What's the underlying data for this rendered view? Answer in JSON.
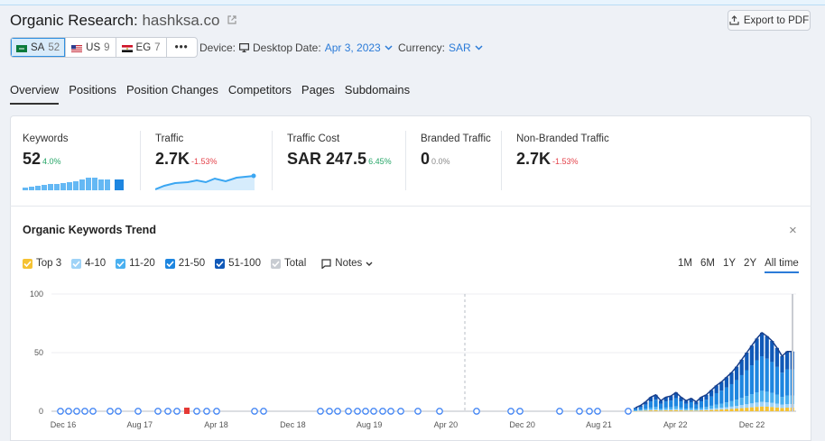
{
  "header": {
    "title_prefix": "Organic Research:",
    "domain": "hashksa.co",
    "export_label": "Export to PDF"
  },
  "databases": [
    {
      "code": "SA",
      "count": "52",
      "flag": "sa",
      "active": true
    },
    {
      "code": "US",
      "count": "9",
      "flag": "us",
      "active": false
    },
    {
      "code": "EG",
      "count": "7",
      "flag": "eg",
      "active": false
    }
  ],
  "more_label": "•••",
  "device": {
    "label": "Device:",
    "value": "Desktop"
  },
  "date": {
    "label": "Date:",
    "value": "Apr 3, 2023"
  },
  "currency": {
    "label": "Currency:",
    "value": "SAR"
  },
  "tabs": [
    "Overview",
    "Positions",
    "Position Changes",
    "Competitors",
    "Pages",
    "Subdomains"
  ],
  "active_tab": "Overview",
  "kpis": [
    {
      "label": "Keywords",
      "value": "52",
      "change": "4.0%",
      "trend": "up"
    },
    {
      "label": "Traffic",
      "value": "2.7K",
      "change": "-1.53%",
      "trend": "down"
    },
    {
      "label": "Traffic Cost",
      "value": "SAR 247.5",
      "change": "6.45%",
      "trend": "up"
    },
    {
      "label": "Branded Traffic",
      "value": "0",
      "change": "0.0%",
      "trend": "neutral"
    },
    {
      "label": "Non-Branded Traffic",
      "value": "2.7K",
      "change": "-1.53%",
      "trend": "down"
    }
  ],
  "trend": {
    "title": "Organic Keywords Trend",
    "close_label": "×",
    "filters": [
      {
        "label": "Top 3",
        "color": "#f5c232"
      },
      {
        "label": "4-10",
        "color": "#9fd3f7"
      },
      {
        "label": "11-20",
        "color": "#4ab0f0"
      },
      {
        "label": "21-50",
        "color": "#1e86e0"
      },
      {
        "label": "51-100",
        "color": "#1059b8"
      },
      {
        "label": "Total",
        "color": "#c8ccd2"
      }
    ],
    "notes_label": "Notes",
    "ranges": [
      "1M",
      "6M",
      "1Y",
      "2Y",
      "All time"
    ],
    "active_range": "All time"
  },
  "chart_data": {
    "type": "bar",
    "yticks": [
      0,
      50,
      100
    ],
    "ylim": [
      0,
      100
    ],
    "x_tick_labels": [
      "Dec 16",
      "Aug 17",
      "Apr 18",
      "Dec 18",
      "Aug 19",
      "Apr 20",
      "Dec 20",
      "Aug 21",
      "Apr 22",
      "Dec 22"
    ],
    "series": [
      {
        "name": "Top 3",
        "color": "#f5c232"
      },
      {
        "name": "4-10",
        "color": "#9fd3f7"
      },
      {
        "name": "11-20",
        "color": "#4ab0f0"
      },
      {
        "name": "21-50",
        "color": "#1e86e0"
      },
      {
        "name": "51-100",
        "color": "#1059b8"
      }
    ],
    "total_values": [
      3,
      5,
      8,
      12,
      14,
      9,
      12,
      13,
      16,
      12,
      9,
      11,
      8,
      12,
      14,
      18,
      22,
      25,
      29,
      33,
      38,
      44,
      50,
      56,
      62,
      67,
      64,
      60,
      54,
      47,
      51,
      51
    ]
  }
}
